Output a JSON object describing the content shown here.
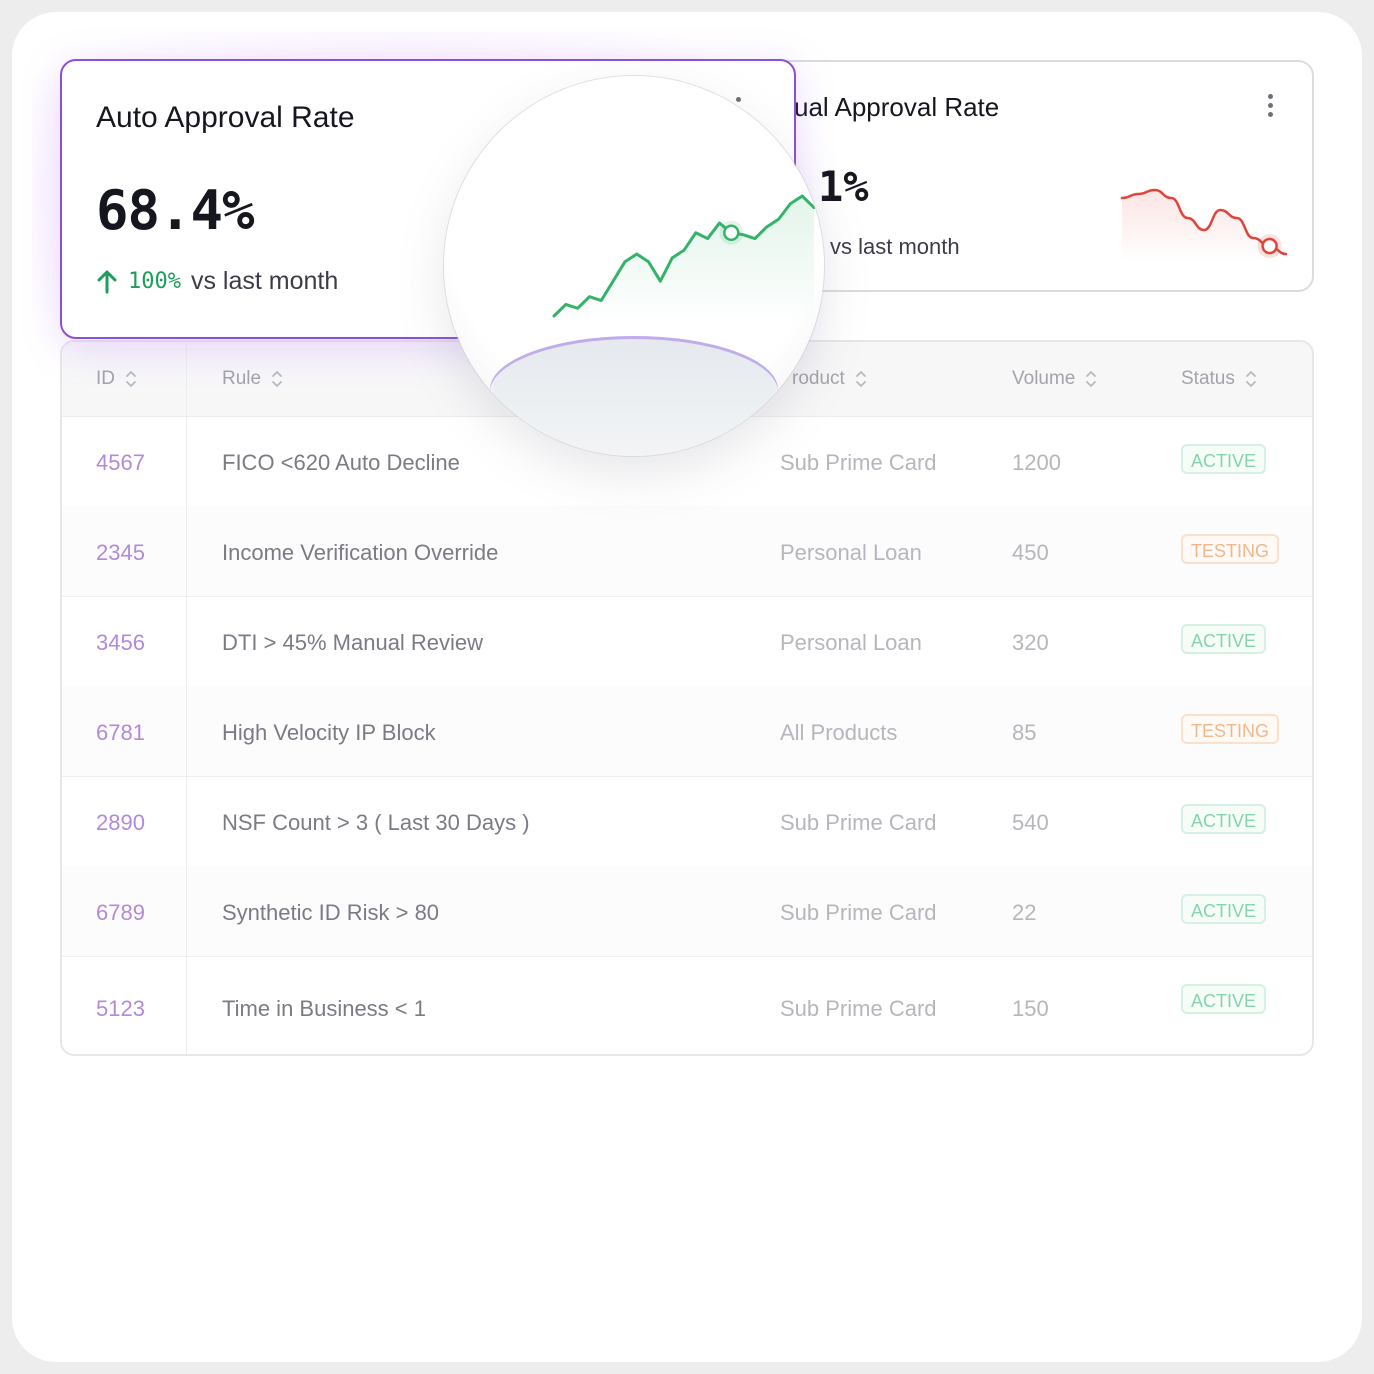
{
  "cards": {
    "auto": {
      "title": "Auto Approval Rate",
      "value": "68.4%",
      "trend_pct": "100%",
      "trend_label": "vs last month",
      "trend_direction": "up",
      "accent": "#1f9d5a",
      "menu_icon": "kebab-menu-icon"
    },
    "manual": {
      "title": "ual Approval Rate",
      "value": "1%",
      "trend_label": "vs last month",
      "accent": "#e0453a",
      "menu_icon": "kebab-menu-icon"
    }
  },
  "table": {
    "columns": [
      {
        "key": "id",
        "label": "ID"
      },
      {
        "key": "rule",
        "label": "Rule"
      },
      {
        "key": "product",
        "label": "roduct"
      },
      {
        "key": "volume",
        "label": "Volume"
      },
      {
        "key": "status",
        "label": "Status"
      }
    ],
    "rows": [
      {
        "id": "4567",
        "rule": "FICO <620 Auto Decline",
        "product": "Sub Prime Card",
        "volume": "1200",
        "status": "ACTIVE"
      },
      {
        "id": "2345",
        "rule": "Income Verification Override",
        "product": "Personal Loan",
        "volume": "450",
        "status": "TESTING"
      },
      {
        "id": "3456",
        "rule": "DTI > 45% Manual Review",
        "product": "Personal Loan",
        "volume": "320",
        "status": "ACTIVE"
      },
      {
        "id": "6781",
        "rule": "High Velocity IP Block",
        "product": "All Products",
        "volume": "85",
        "status": "TESTING"
      },
      {
        "id": "2890",
        "rule": "NSF Count > 3 ( Last 30 Days )",
        "product": "Sub Prime Card",
        "volume": "540",
        "status": "ACTIVE"
      },
      {
        "id": "6789",
        "rule": "Synthetic ID Risk > 80",
        "product": "Sub Prime Card",
        "volume": "22",
        "status": "ACTIVE"
      },
      {
        "id": "5123",
        "rule": "Time in Business < 1",
        "product": "Sub Prime Card",
        "volume": "150",
        "status": "ACTIVE"
      }
    ],
    "status_colors": {
      "ACTIVE": "#86d3ad",
      "TESTING": "#f0b78c"
    },
    "sort_icon": "sort-chevrons-icon"
  },
  "chart_data": [
    {
      "type": "line",
      "y": [
        12,
        18,
        16,
        22,
        20,
        30,
        40,
        44,
        40,
        30,
        42,
        46,
        55,
        52,
        60,
        55,
        54,
        52,
        58,
        62,
        70,
        74,
        68
      ],
      "highlight_index": 15,
      "color": "#34b36a"
    },
    {
      "type": "line",
      "y": [
        60,
        61,
        62,
        60,
        55,
        52,
        57,
        55,
        50,
        48,
        46
      ],
      "highlight_index": 9,
      "color": "#e0453a"
    }
  ]
}
